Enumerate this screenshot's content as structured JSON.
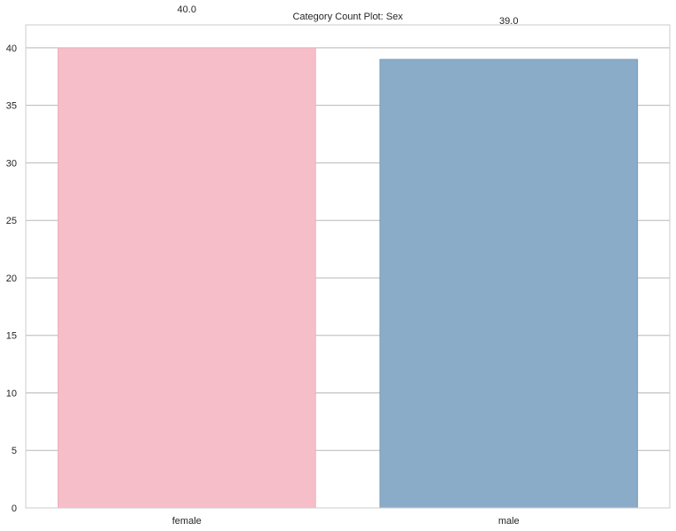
{
  "chart_data": {
    "type": "bar",
    "title": "Category Count Plot: Sex",
    "xlabel": "",
    "ylabel": "",
    "categories": [
      "female",
      "male"
    ],
    "values": [
      40,
      39
    ],
    "value_labels": [
      "40.0",
      "39.0"
    ],
    "ylim": [
      0,
      42
    ],
    "yticks": [
      0,
      5,
      10,
      15,
      20,
      25,
      30,
      35,
      40
    ],
    "ytick_labels": [
      "0",
      "5",
      "10",
      "15",
      "20",
      "25",
      "30",
      "35",
      "40"
    ],
    "colors": [
      "#f6bec8",
      "#8aacc8"
    ],
    "grid": true,
    "legend": "none"
  }
}
